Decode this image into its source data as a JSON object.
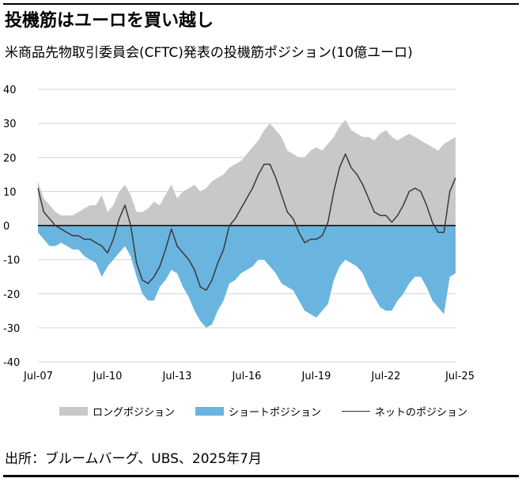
{
  "title": "投機筋はユーロを買い越し",
  "subtitle": "米商品先物取引委員会(CFTC)発表の投機筋ポジション(10億ユーロ)",
  "source": "出所：ブルームバーグ、UBS、2025年7月",
  "colors": {
    "long": "#c8c8c8",
    "short": "#6ab4e0",
    "net": "#3a3a3a",
    "grid": "#d4d4d4",
    "zero": "#000000"
  },
  "chart_data": {
    "type": "area",
    "title": "投機筋はユーロを買い越し",
    "subtitle": "米商品先物取引委員会(CFTC)発表の投機筋ポジション(10億ユーロ)",
    "xlabel": "",
    "ylabel": "",
    "ylim": [
      -40,
      40
    ],
    "yticks": [
      40,
      30,
      20,
      10,
      0,
      -10,
      -20,
      -30,
      -40
    ],
    "xticks": [
      "Jul-07",
      "Jul-10",
      "Jul-13",
      "Jul-16",
      "Jul-19",
      "Jul-22",
      "Jul-25"
    ],
    "xrange": [
      2007.5,
      2025.5
    ],
    "grid": true,
    "legend_position": "bottom",
    "x": [
      2007.5,
      2007.75,
      2008.0,
      2008.25,
      2008.5,
      2008.75,
      2009.0,
      2009.25,
      2009.5,
      2009.75,
      2010.0,
      2010.25,
      2010.5,
      2010.75,
      2011.0,
      2011.25,
      2011.5,
      2011.75,
      2012.0,
      2012.25,
      2012.5,
      2012.75,
      2013.0,
      2013.25,
      2013.5,
      2013.75,
      2014.0,
      2014.25,
      2014.5,
      2014.75,
      2015.0,
      2015.25,
      2015.5,
      2015.75,
      2016.0,
      2016.25,
      2016.5,
      2016.75,
      2017.0,
      2017.25,
      2017.5,
      2017.75,
      2018.0,
      2018.25,
      2018.5,
      2018.75,
      2019.0,
      2019.25,
      2019.5,
      2019.75,
      2020.0,
      2020.25,
      2020.5,
      2020.75,
      2021.0,
      2021.25,
      2021.5,
      2021.75,
      2022.0,
      2022.25,
      2022.5,
      2022.75,
      2023.0,
      2023.25,
      2023.5,
      2023.75,
      2024.0,
      2024.25,
      2024.5,
      2024.75,
      2025.0,
      2025.25,
      2025.5
    ],
    "series": [
      {
        "name": "ロングポジション",
        "values": [
          13,
          8,
          6,
          4,
          3,
          3,
          3,
          4,
          5,
          6,
          6,
          9,
          4,
          6,
          10,
          12,
          9,
          4,
          4,
          5,
          7,
          6,
          9,
          12,
          8,
          10,
          11,
          12,
          10,
          11,
          13,
          14,
          15,
          17,
          18,
          19,
          21,
          23,
          25,
          28,
          30,
          28,
          26,
          22,
          21,
          20,
          20,
          22,
          23,
          22,
          24,
          26,
          29,
          31,
          28,
          27,
          26,
          26,
          25,
          27,
          28,
          26,
          25,
          26,
          27,
          26,
          25,
          24,
          23,
          22,
          24,
          25,
          26
        ]
      },
      {
        "name": "ショートポジション",
        "values": [
          -2,
          -4,
          -6,
          -6,
          -5,
          -6,
          -7,
          -7,
          -9,
          -10,
          -11,
          -15,
          -12,
          -10,
          -8,
          -6,
          -9,
          -15,
          -20,
          -22,
          -22,
          -18,
          -16,
          -13,
          -14,
          -18,
          -21,
          -25,
          -28,
          -30,
          -29,
          -25,
          -22,
          -17,
          -16,
          -14,
          -13,
          -12,
          -10,
          -10,
          -12,
          -14,
          -17,
          -18,
          -19,
          -22,
          -25,
          -26,
          -27,
          -25,
          -23,
          -16,
          -12,
          -10,
          -11,
          -12,
          -14,
          -18,
          -21,
          -24,
          -25,
          -25,
          -22,
          -20,
          -17,
          -15,
          -15,
          -18,
          -22,
          -24,
          -26,
          -15,
          -14
        ]
      },
      {
        "name": "ネットのポジション",
        "values": [
          11,
          4,
          2,
          0,
          -1,
          -2,
          -3,
          -3,
          -4,
          -4,
          -5,
          -6,
          -8,
          -4,
          2,
          6,
          0,
          -11,
          -16,
          -17,
          -15,
          -12,
          -7,
          -1,
          -6,
          -8,
          -10,
          -13,
          -18,
          -19,
          -16,
          -11,
          -7,
          0,
          2,
          5,
          8,
          11,
          15,
          18,
          18,
          14,
          9,
          4,
          2,
          -2,
          -5,
          -4,
          -4,
          -3,
          1,
          10,
          17,
          21,
          17,
          15,
          12,
          8,
          4,
          3,
          3,
          1,
          3,
          6,
          10,
          11,
          10,
          6,
          1,
          -2,
          -2,
          10,
          14
        ]
      }
    ]
  }
}
